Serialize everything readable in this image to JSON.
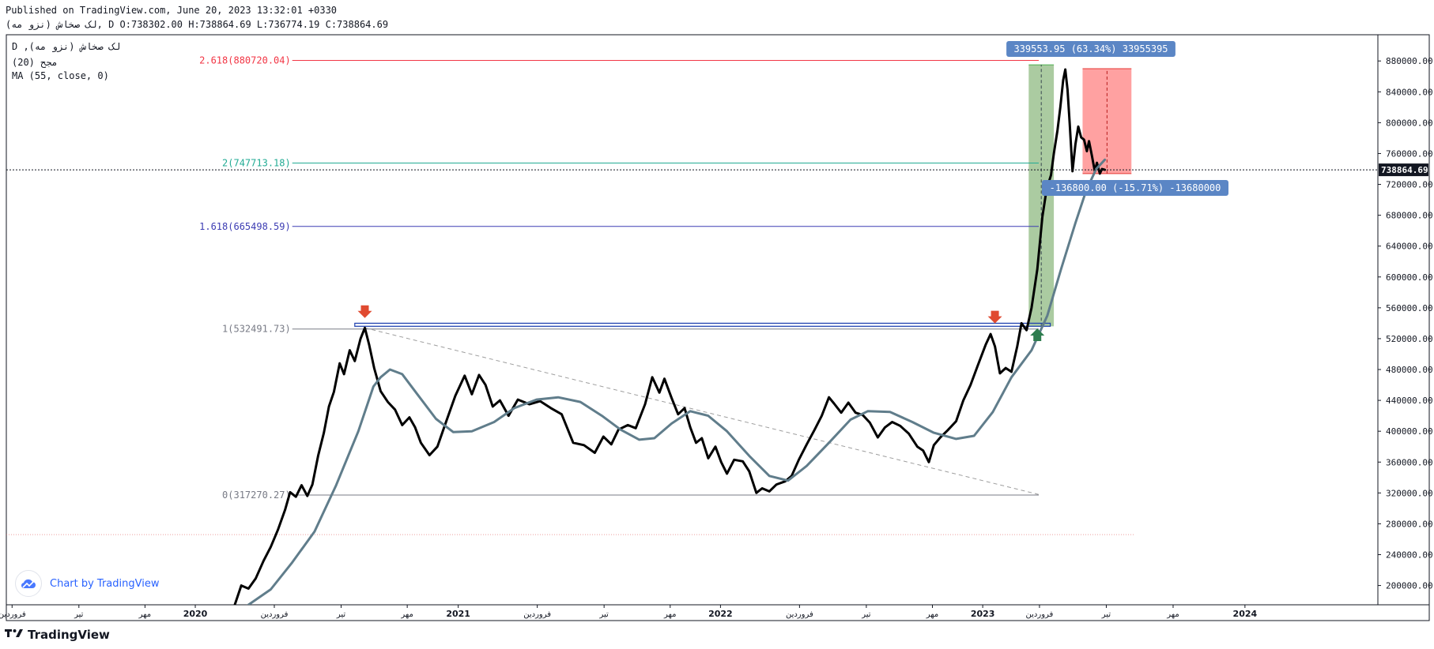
{
  "header": {
    "published": "Published on TradingView.com, June 20, 2023 13:32:01 +0330",
    "ohlc": "(نزو مه) لک صخاش, D O:738302.00 H:738864.69 L:736774.19 C:738864.69"
  },
  "legend": {
    "symbol": "D ,(نزو مه) لک صخاش",
    "volume": "(20) مجح",
    "ma": "MA (55, close, 0)"
  },
  "watermark": {
    "text": "Chart by TradingView"
  },
  "footer": {
    "brand": "TradingView",
    "logo_icon": "tradingview-logo-icon"
  },
  "colors": {
    "price": "#000000",
    "ma": "#607d8b",
    "fib_2618": "#f23645",
    "fib_2": "#22ab94",
    "fib_1618": "#3c3cb3",
    "fib_1": "#787b86",
    "fib_0": "#787b86",
    "long_profit": "#8fba82",
    "short_loss": "#ff8a8a",
    "arrow_down": "#e04a30",
    "arrow_up": "#2e7d4f",
    "badge": "#5b86c5"
  },
  "chart_data": {
    "type": "line",
    "y_axis_position": "right",
    "ylim": [
      175000,
      914000
    ],
    "y_ticks": [
      200000,
      240000,
      280000,
      320000,
      360000,
      400000,
      440000,
      480000,
      520000,
      560000,
      600000,
      640000,
      680000,
      720000,
      760000,
      800000,
      840000,
      880000
    ],
    "y_tick_labels": [
      "200000.00",
      "240000.00",
      "280000.00",
      "320000.00",
      "360000.00",
      "400000.00",
      "440000.00",
      "480000.00",
      "520000.00",
      "560000.00",
      "600000.00",
      "640000.00",
      "680000.00",
      "720000.00",
      "760000.00",
      "800000.00",
      "840000.00",
      "880000.00"
    ],
    "xlim": [
      "2019-04-13",
      "2024-07-04"
    ],
    "x_ticks": [
      {
        "date": "2019-04-21",
        "label": "فروردین",
        "bold": false
      },
      {
        "date": "2019-07-23",
        "label": "تیر",
        "bold": false
      },
      {
        "date": "2019-10-23",
        "label": "مهر",
        "bold": false
      },
      {
        "date": "2020-01-01",
        "label": "2020",
        "bold": true
      },
      {
        "date": "2020-04-20",
        "label": "فروردین",
        "bold": false
      },
      {
        "date": "2020-07-22",
        "label": "تیر",
        "bold": false
      },
      {
        "date": "2020-10-22",
        "label": "مهر",
        "bold": false
      },
      {
        "date": "2021-01-01",
        "label": "2021",
        "bold": true
      },
      {
        "date": "2021-04-21",
        "label": "فروردین",
        "bold": false
      },
      {
        "date": "2021-07-23",
        "label": "تیر",
        "bold": false
      },
      {
        "date": "2021-10-23",
        "label": "مهر",
        "bold": false
      },
      {
        "date": "2022-01-01",
        "label": "2022",
        "bold": true
      },
      {
        "date": "2022-04-21",
        "label": "فروردین",
        "bold": false
      },
      {
        "date": "2022-07-23",
        "label": "تیر",
        "bold": false
      },
      {
        "date": "2022-10-23",
        "label": "مهر",
        "bold": false
      },
      {
        "date": "2023-01-01",
        "label": "2023",
        "bold": true
      },
      {
        "date": "2023-03-21",
        "label": "فروردین",
        "bold": false
      },
      {
        "date": "2023-06-22",
        "label": "تیر",
        "bold": false
      },
      {
        "date": "2023-09-23",
        "label": "مهر",
        "bold": false
      },
      {
        "date": "2024-01-01",
        "label": "2024",
        "bold": true
      }
    ],
    "last_price": 738864.69,
    "last_price_label": "738864.69",
    "series": [
      {
        "name": "",
        "role": "price",
        "points": [
          [
            "2020-02-25",
            175000
          ],
          [
            "2020-03-05",
            200000
          ],
          [
            "2020-03-15",
            196000
          ],
          [
            "2020-03-25",
            209000
          ],
          [
            "2020-04-05",
            232000
          ],
          [
            "2020-04-15",
            250000
          ],
          [
            "2020-04-25",
            272000
          ],
          [
            "2020-05-05",
            298000
          ],
          [
            "2020-05-12",
            321000
          ],
          [
            "2020-05-20",
            315000
          ],
          [
            "2020-05-28",
            330000
          ],
          [
            "2020-06-05",
            316000
          ],
          [
            "2020-06-12",
            331000
          ],
          [
            "2020-06-20",
            368000
          ],
          [
            "2020-06-28",
            398000
          ],
          [
            "2020-07-05",
            432000
          ],
          [
            "2020-07-12",
            451000
          ],
          [
            "2020-07-20",
            488000
          ],
          [
            "2020-07-26",
            474000
          ],
          [
            "2020-08-03",
            505000
          ],
          [
            "2020-08-10",
            491000
          ],
          [
            "2020-08-18",
            520000
          ],
          [
            "2020-08-24",
            534000
          ],
          [
            "2020-08-30",
            512000
          ],
          [
            "2020-09-06",
            482000
          ],
          [
            "2020-09-15",
            452000
          ],
          [
            "2020-09-25",
            438000
          ],
          [
            "2020-10-05",
            428000
          ],
          [
            "2020-10-15",
            408000
          ],
          [
            "2020-10-25",
            418000
          ],
          [
            "2020-11-02",
            405000
          ],
          [
            "2020-11-10",
            385000
          ],
          [
            "2020-11-22",
            369000
          ],
          [
            "2020-12-03",
            380000
          ],
          [
            "2020-12-15",
            412000
          ],
          [
            "2020-12-28",
            446000
          ],
          [
            "2021-01-10",
            472000
          ],
          [
            "2021-01-20",
            448000
          ],
          [
            "2021-01-30",
            473000
          ],
          [
            "2021-02-08",
            460000
          ],
          [
            "2021-02-18",
            432000
          ],
          [
            "2021-02-28",
            440000
          ],
          [
            "2021-03-12",
            420000
          ],
          [
            "2021-03-25",
            441000
          ],
          [
            "2021-04-10",
            435000
          ],
          [
            "2021-04-25",
            439000
          ],
          [
            "2021-05-10",
            430000
          ],
          [
            "2021-05-25",
            422000
          ],
          [
            "2021-06-10",
            385000
          ],
          [
            "2021-06-25",
            382000
          ],
          [
            "2021-07-10",
            372000
          ],
          [
            "2021-07-22",
            393000
          ],
          [
            "2021-08-02",
            383000
          ],
          [
            "2021-08-12",
            402000
          ],
          [
            "2021-08-25",
            408000
          ],
          [
            "2021-09-05",
            404000
          ],
          [
            "2021-09-18",
            435000
          ],
          [
            "2021-09-28",
            470000
          ],
          [
            "2021-10-08",
            450000
          ],
          [
            "2021-10-15",
            468000
          ],
          [
            "2021-10-25",
            443000
          ],
          [
            "2021-11-03",
            422000
          ],
          [
            "2021-11-12",
            430000
          ],
          [
            "2021-11-20",
            405000
          ],
          [
            "2021-11-28",
            385000
          ],
          [
            "2021-12-06",
            391000
          ],
          [
            "2021-12-15",
            365000
          ],
          [
            "2021-12-25",
            380000
          ],
          [
            "2022-01-02",
            360000
          ],
          [
            "2022-01-10",
            345000
          ],
          [
            "2022-01-20",
            363000
          ],
          [
            "2022-02-01",
            361000
          ],
          [
            "2022-02-10",
            348000
          ],
          [
            "2022-02-20",
            320000
          ],
          [
            "2022-02-28",
            326000
          ],
          [
            "2022-03-10",
            322000
          ],
          [
            "2022-03-20",
            331000
          ],
          [
            "2022-04-01",
            335000
          ],
          [
            "2022-04-10",
            342000
          ],
          [
            "2022-04-20",
            363000
          ],
          [
            "2022-05-01",
            383000
          ],
          [
            "2022-05-12",
            402000
          ],
          [
            "2022-05-22",
            420000
          ],
          [
            "2022-06-01",
            444000
          ],
          [
            "2022-06-08",
            436000
          ],
          [
            "2022-06-18",
            424000
          ],
          [
            "2022-06-28",
            437000
          ],
          [
            "2022-07-08",
            424000
          ],
          [
            "2022-07-18",
            421000
          ],
          [
            "2022-07-28",
            411000
          ],
          [
            "2022-08-08",
            392000
          ],
          [
            "2022-08-18",
            405000
          ],
          [
            "2022-08-28",
            412000
          ],
          [
            "2022-09-08",
            407000
          ],
          [
            "2022-09-20",
            397000
          ],
          [
            "2022-10-02",
            380000
          ],
          [
            "2022-10-10",
            375000
          ],
          [
            "2022-10-18",
            360000
          ],
          [
            "2022-10-25",
            382000
          ],
          [
            "2022-11-03",
            392000
          ],
          [
            "2022-11-13",
            401000
          ],
          [
            "2022-11-25",
            413000
          ],
          [
            "2022-12-05",
            440000
          ],
          [
            "2022-12-15",
            460000
          ],
          [
            "2022-12-25",
            485000
          ],
          [
            "2023-01-05",
            512000
          ],
          [
            "2023-01-12",
            526000
          ],
          [
            "2023-01-18",
            510000
          ],
          [
            "2023-01-25",
            475000
          ],
          [
            "2023-02-02",
            482000
          ],
          [
            "2023-02-10",
            477000
          ],
          [
            "2023-02-18",
            510000
          ],
          [
            "2023-02-24",
            540000
          ],
          [
            "2023-03-03",
            531000
          ],
          [
            "2023-03-10",
            560000
          ],
          [
            "2023-03-18",
            610000
          ],
          [
            "2023-03-25",
            678000
          ],
          [
            "2023-03-31",
            714000
          ],
          [
            "2023-04-06",
            732000
          ],
          [
            "2023-04-10",
            760000
          ],
          [
            "2023-04-15",
            790000
          ],
          [
            "2023-04-19",
            820000
          ],
          [
            "2023-04-23",
            855000
          ],
          [
            "2023-04-26",
            869000
          ],
          [
            "2023-04-29",
            843000
          ],
          [
            "2023-05-02",
            800000
          ],
          [
            "2023-05-06",
            737000
          ],
          [
            "2023-05-10",
            772000
          ],
          [
            "2023-05-14",
            795000
          ],
          [
            "2023-05-18",
            781000
          ],
          [
            "2023-05-22",
            778000
          ],
          [
            "2023-05-26",
            763000
          ],
          [
            "2023-05-29",
            776000
          ],
          [
            "2023-06-02",
            757000
          ],
          [
            "2023-06-06",
            737000
          ],
          [
            "2023-06-09",
            748000
          ],
          [
            "2023-06-13",
            734000
          ],
          [
            "2023-06-16",
            740000
          ],
          [
            "2023-06-20",
            738864.69
          ]
        ]
      },
      {
        "name": "",
        "role": "ma",
        "points": [
          [
            "2020-03-15",
            175000
          ],
          [
            "2020-04-15",
            195000
          ],
          [
            "2020-05-15",
            230000
          ],
          [
            "2020-06-15",
            270000
          ],
          [
            "2020-07-15",
            330000
          ],
          [
            "2020-08-15",
            400000
          ],
          [
            "2020-09-05",
            458000
          ],
          [
            "2020-09-15",
            470000
          ],
          [
            "2020-09-28",
            480000
          ],
          [
            "2020-10-15",
            474000
          ],
          [
            "2020-11-05",
            448000
          ],
          [
            "2020-12-01",
            416000
          ],
          [
            "2020-12-25",
            399000
          ],
          [
            "2021-01-20",
            400000
          ],
          [
            "2021-02-20",
            412000
          ],
          [
            "2021-03-20",
            430000
          ],
          [
            "2021-04-20",
            441000
          ],
          [
            "2021-05-20",
            444000
          ],
          [
            "2021-06-20",
            438000
          ],
          [
            "2021-07-20",
            420000
          ],
          [
            "2021-08-15",
            402000
          ],
          [
            "2021-09-10",
            389000
          ],
          [
            "2021-10-01",
            391000
          ],
          [
            "2021-10-25",
            410000
          ],
          [
            "2021-11-20",
            426000
          ],
          [
            "2021-12-15",
            420000
          ],
          [
            "2022-01-10",
            400000
          ],
          [
            "2022-02-10",
            368000
          ],
          [
            "2022-03-10",
            342000
          ],
          [
            "2022-04-05",
            336000
          ],
          [
            "2022-05-01",
            355000
          ],
          [
            "2022-06-01",
            385000
          ],
          [
            "2022-07-01",
            415000
          ],
          [
            "2022-07-25",
            426000
          ],
          [
            "2022-08-25",
            425000
          ],
          [
            "2022-09-25",
            412000
          ],
          [
            "2022-10-25",
            398000
          ],
          [
            "2022-11-25",
            390000
          ],
          [
            "2022-12-20",
            394000
          ],
          [
            "2023-01-15",
            425000
          ],
          [
            "2023-02-10",
            470000
          ],
          [
            "2023-03-10",
            505000
          ],
          [
            "2023-04-01",
            550000
          ],
          [
            "2023-04-20",
            610000
          ],
          [
            "2023-05-10",
            670000
          ],
          [
            "2023-05-25",
            712000
          ],
          [
            "2023-06-08",
            740000
          ],
          [
            "2023-06-20",
            752000
          ]
        ]
      }
    ],
    "fib_levels": [
      {
        "ratio": 2.618,
        "value": 880720.04,
        "label": "2.618(880720.04)",
        "color_key": "fib_2618"
      },
      {
        "ratio": 2,
        "value": 747713.18,
        "label": "2(747713.18)",
        "color_key": "fib_2"
      },
      {
        "ratio": 1.618,
        "value": 665498.59,
        "label": "1.618(665498.59)",
        "color_key": "fib_1618"
      },
      {
        "ratio": 1,
        "value": 532491.73,
        "label": "1(532491.73)",
        "color_key": "fib_1"
      },
      {
        "ratio": 0,
        "value": 317270.27,
        "label": "0(317270.27)",
        "color_key": "fib_0"
      }
    ],
    "fib_x_range": [
      "2020-05-15",
      "2023-03-20"
    ],
    "trendline": {
      "from": [
        "2020-08-24",
        534000
      ],
      "to": [
        "2023-03-20",
        318000
      ]
    },
    "resistance_zone": {
      "x_range": [
        "2020-08-10",
        "2023-04-05"
      ],
      "y_range": [
        536000,
        540000
      ]
    },
    "dotted_level": {
      "value": 266000,
      "x_range": [
        "2019-04-13",
        "2023-08-01"
      ]
    },
    "long_position": {
      "x_range": [
        "2023-03-06",
        "2023-04-10"
      ],
      "y_range": [
        536000,
        875000
      ],
      "label": "339553.95 (63.34%) 33955395"
    },
    "short_position": {
      "x_range": [
        "2023-05-20",
        "2023-07-27"
      ],
      "y_range": [
        734000,
        870000
      ],
      "label": "-136800.00 (-15.71%) -13680000"
    },
    "markers": [
      {
        "type": "arrow-down",
        "date": "2020-08-24",
        "value": 555000,
        "color_key": "arrow_down"
      },
      {
        "type": "arrow-down",
        "date": "2023-01-18",
        "value": 548000,
        "color_key": "arrow_down"
      },
      {
        "type": "arrow-up",
        "date": "2023-03-18",
        "value": 525000,
        "color_key": "arrow_up"
      }
    ]
  }
}
